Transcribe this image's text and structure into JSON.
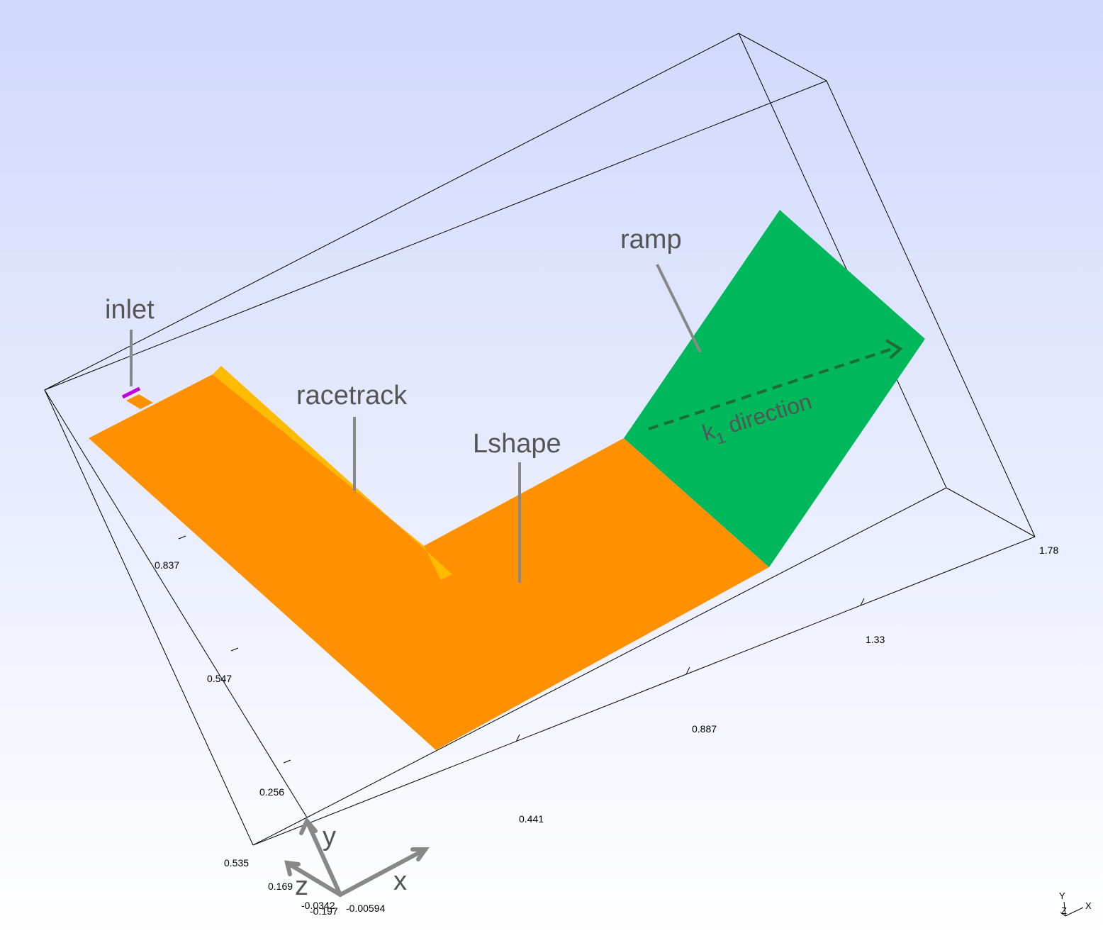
{
  "labels": {
    "inlet": "inlet",
    "racetrack": "racetrack",
    "lshape": "Lshape",
    "ramp": "ramp",
    "direction": {
      "base": "k",
      "subscript": "1",
      "rest": "direction"
    }
  },
  "axes": {
    "left_ticks": [
      "0.837",
      "0.547",
      "0.256"
    ],
    "front_ticks": [
      "0.535",
      "0.169",
      "-0.0342",
      "-0.197"
    ],
    "bottom_ticks": [
      "-0.00594",
      "0.441",
      "0.887",
      "1.33",
      "1.78"
    ]
  },
  "triad": {
    "x": "x",
    "y": "y",
    "z": "z"
  },
  "orientation": {
    "y": "Y",
    "z": "Z",
    "x": "X"
  }
}
